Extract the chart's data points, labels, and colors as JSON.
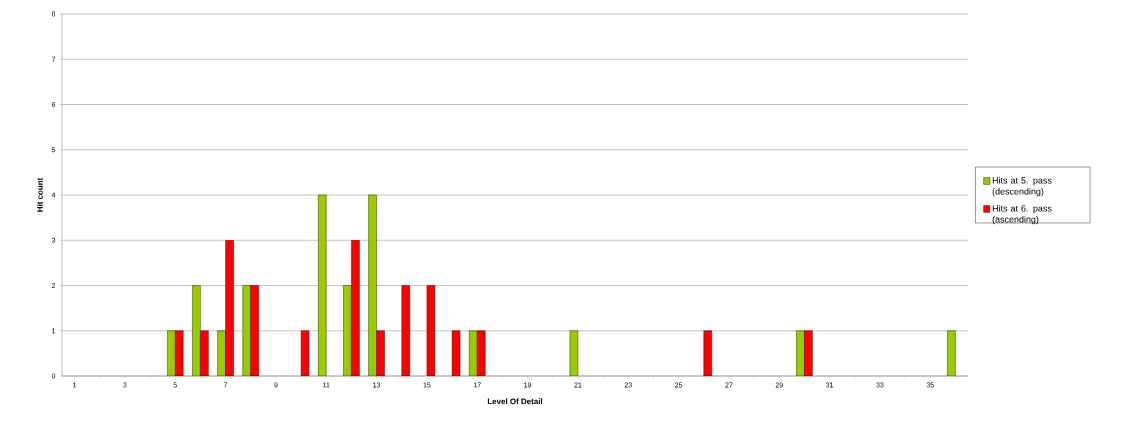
{
  "chart_data": {
    "type": "bar",
    "xlabel": "Level Of Detail",
    "ylabel": "Hit count",
    "categories": [
      "1",
      null,
      "3",
      null,
      "5",
      null,
      "7",
      null,
      "9",
      null,
      "11",
      null,
      "13",
      null,
      "15",
      null,
      "17",
      null,
      "19",
      null,
      "21",
      null,
      "23",
      null,
      "25",
      null,
      "27",
      null,
      "29",
      null,
      "31",
      null,
      "33",
      null,
      "35",
      null
    ],
    "series": [
      {
        "name": "Hits at 5. pass (descending)",
        "color": "#99cc00",
        "values": [
          null,
          null,
          null,
          null,
          1,
          2,
          1,
          2,
          null,
          null,
          4,
          2,
          4,
          null,
          null,
          null,
          1,
          null,
          null,
          null,
          1,
          null,
          null,
          null,
          null,
          null,
          null,
          null,
          null,
          1,
          null,
          null,
          null,
          null,
          null,
          1
        ]
      },
      {
        "name": "Hits at 6. pass (ascending)",
        "color": "#ff0000",
        "values": [
          null,
          null,
          null,
          null,
          1,
          1,
          3,
          2,
          null,
          1,
          null,
          3,
          1,
          2,
          2,
          1,
          1,
          null,
          null,
          null,
          null,
          null,
          null,
          null,
          null,
          1,
          null,
          null,
          null,
          1,
          null,
          null,
          null,
          null,
          null,
          null
        ]
      }
    ],
    "ylim": [
      0,
      8
    ],
    "yticks": [
      0,
      1,
      2,
      3,
      4,
      5,
      6,
      7,
      8
    ],
    "grid": "y",
    "legend": "right"
  }
}
